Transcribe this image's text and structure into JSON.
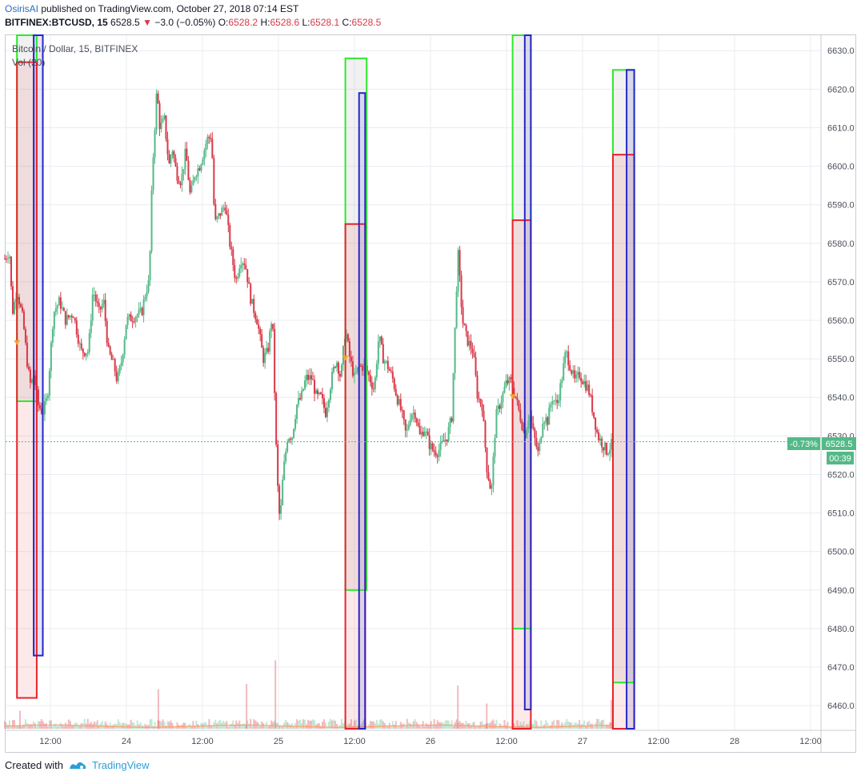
{
  "header": {
    "author": "OsirisAI",
    "published_text": "published on TradingView.com, October 27, 2018 07:14 EST",
    "symbol": "BITFINEX:BTCUSD, 15",
    "last": "6528.5",
    "change": "−3.0 (−0.05%)",
    "o_label": "O:",
    "o_value": "6528.2",
    "h_label": "H:",
    "h_value": "6528.6",
    "l_label": "L:",
    "l_value": "6528.1",
    "c_label": "C:",
    "c_value": "6528.5"
  },
  "legend": {
    "series_title": "Bitcoin / Dollar, 15, BITFINEX",
    "volume_title": "Vol (20)"
  },
  "price_tag": {
    "change": "-0.73%",
    "price": "6528.5",
    "countdown": "00:39"
  },
  "footer": {
    "created_with": "Created with",
    "brand": "TradingView"
  },
  "colors": {
    "up": "#53b987",
    "down": "#d93848",
    "green_box": "#2ee82e",
    "red_box": "#e8242b",
    "blue_box": "#2626c8",
    "grid": "#e9ecf2",
    "axis_text": "#4a4f5a"
  },
  "chart_data": {
    "type": "candlestick",
    "title": "Bitcoin / Dollar, 15, BITFINEX",
    "y_range": [
      6454,
      6634
    ],
    "y_ticks": [
      "6630.0",
      "6620.0",
      "6610.0",
      "6600.0",
      "6590.0",
      "6580.0",
      "6570.0",
      "6560.0",
      "6550.0",
      "6540.0",
      "6530.0",
      "6520.0",
      "6510.0",
      "6500.0",
      "6490.0",
      "6480.0",
      "6470.0",
      "6460.0"
    ],
    "x_range": [
      0,
      5.23
    ],
    "x_ticks": [
      {
        "t": 0.3,
        "label": "12:00"
      },
      {
        "t": 0.8,
        "label": "24"
      },
      {
        "t": 1.3,
        "label": "12:00"
      },
      {
        "t": 1.8,
        "label": "25"
      },
      {
        "t": 2.3,
        "label": "12:00"
      },
      {
        "t": 2.8,
        "label": "26"
      },
      {
        "t": 3.3,
        "label": "12:00"
      },
      {
        "t": 3.8,
        "label": "27"
      },
      {
        "t": 4.3,
        "label": "12:00"
      },
      {
        "t": 4.8,
        "label": "28"
      },
      {
        "t": 5.3,
        "label": "12:00"
      }
    ],
    "price_path": [
      [
        0.0,
        6576
      ],
      [
        0.03,
        6578
      ],
      [
        0.05,
        6562
      ],
      [
        0.08,
        6568
      ],
      [
        0.12,
        6560
      ],
      [
        0.15,
        6548
      ],
      [
        0.17,
        6543
      ],
      [
        0.19,
        6546
      ],
      [
        0.22,
        6538
      ],
      [
        0.25,
        6536
      ],
      [
        0.28,
        6540
      ],
      [
        0.32,
        6562
      ],
      [
        0.36,
        6565
      ],
      [
        0.4,
        6560
      ],
      [
        0.45,
        6562
      ],
      [
        0.5,
        6552
      ],
      [
        0.55,
        6552
      ],
      [
        0.58,
        6568
      ],
      [
        0.62,
        6562
      ],
      [
        0.65,
        6565
      ],
      [
        0.68,
        6552
      ],
      [
        0.72,
        6548
      ],
      [
        0.74,
        6544
      ],
      [
        0.77,
        6550
      ],
      [
        0.8,
        6560
      ],
      [
        0.85,
        6561
      ],
      [
        0.9,
        6562
      ],
      [
        0.93,
        6568
      ],
      [
        0.95,
        6570
      ],
      [
        0.97,
        6598
      ],
      [
        1.0,
        6620
      ],
      [
        1.02,
        6610
      ],
      [
        1.05,
        6612
      ],
      [
        1.08,
        6600
      ],
      [
        1.1,
        6605
      ],
      [
        1.13,
        6598
      ],
      [
        1.16,
        6596
      ],
      [
        1.19,
        6604
      ],
      [
        1.22,
        6592
      ],
      [
        1.25,
        6598
      ],
      [
        1.28,
        6600
      ],
      [
        1.31,
        6604
      ],
      [
        1.33,
        6607
      ],
      [
        1.36,
        6608
      ],
      [
        1.38,
        6585
      ],
      [
        1.42,
        6588
      ],
      [
        1.45,
        6590
      ],
      [
        1.48,
        6580
      ],
      [
        1.52,
        6570
      ],
      [
        1.55,
        6576
      ],
      [
        1.58,
        6575
      ],
      [
        1.62,
        6565
      ],
      [
        1.66,
        6560
      ],
      [
        1.7,
        6550
      ],
      [
        1.73,
        6552
      ],
      [
        1.76,
        6562
      ],
      [
        1.79,
        6520
      ],
      [
        1.81,
        6507
      ],
      [
        1.83,
        6520
      ],
      [
        1.86,
        6530
      ],
      [
        1.89,
        6530
      ],
      [
        1.92,
        6538
      ],
      [
        1.95,
        6540
      ],
      [
        1.98,
        6545
      ],
      [
        2.02,
        6545
      ],
      [
        2.05,
        6540
      ],
      [
        2.08,
        6540
      ],
      [
        2.11,
        6536
      ],
      [
        2.15,
        6545
      ],
      [
        2.18,
        6550
      ],
      [
        2.21,
        6545
      ],
      [
        2.24,
        6558
      ],
      [
        2.27,
        6550
      ],
      [
        2.3,
        6545
      ],
      [
        2.33,
        6548
      ],
      [
        2.37,
        6548
      ],
      [
        2.4,
        6545
      ],
      [
        2.43,
        6542
      ],
      [
        2.46,
        6556
      ],
      [
        2.49,
        6550
      ],
      [
        2.52,
        6548
      ],
      [
        2.55,
        6545
      ],
      [
        2.58,
        6540
      ],
      [
        2.61,
        6536
      ],
      [
        2.64,
        6530
      ],
      [
        2.67,
        6536
      ],
      [
        2.7,
        6536
      ],
      [
        2.73,
        6530
      ],
      [
        2.76,
        6532
      ],
      [
        2.79,
        6528
      ],
      [
        2.82,
        6526
      ],
      [
        2.85,
        6526
      ],
      [
        2.88,
        6528
      ],
      [
        2.91,
        6530
      ],
      [
        2.94,
        6535
      ],
      [
        2.98,
        6578
      ],
      [
        3.01,
        6560
      ],
      [
        3.04,
        6555
      ],
      [
        3.08,
        6552
      ],
      [
        3.11,
        6540
      ],
      [
        3.14,
        6538
      ],
      [
        3.17,
        6522
      ],
      [
        3.2,
        6515
      ],
      [
        3.23,
        6535
      ],
      [
        3.27,
        6540
      ],
      [
        3.3,
        6544
      ],
      [
        3.33,
        6544
      ],
      [
        3.36,
        6540
      ],
      [
        3.39,
        6535
      ],
      [
        3.42,
        6530
      ],
      [
        3.45,
        6536
      ],
      [
        3.48,
        6530
      ],
      [
        3.51,
        6525
      ],
      [
        3.54,
        6535
      ],
      [
        3.57,
        6534
      ],
      [
        3.6,
        6540
      ],
      [
        3.63,
        6538
      ],
      [
        3.66,
        6544
      ],
      [
        3.69,
        6552
      ],
      [
        3.72,
        6548
      ],
      [
        3.75,
        6544
      ],
      [
        3.78,
        6546
      ],
      [
        3.81,
        6544
      ],
      [
        3.84,
        6542
      ],
      [
        3.87,
        6536
      ],
      [
        3.9,
        6530
      ],
      [
        3.93,
        6528
      ],
      [
        3.96,
        6526
      ],
      [
        3.98,
        6527
      ],
      [
        4.0,
        6528.5
      ]
    ],
    "volume_range": [
      0,
      1
    ],
    "vol_spikes": [
      {
        "t": 1.01,
        "v": 0.55
      },
      {
        "t": 1.59,
        "v": 0.62
      },
      {
        "t": 1.78,
        "v": 0.95
      },
      {
        "t": 2.98,
        "v": 0.6
      },
      {
        "t": 3.17,
        "v": 0.35
      },
      {
        "t": 3.34,
        "v": 0.4
      },
      {
        "t": 3.99,
        "v": 0.4
      },
      {
        "t": 0.1,
        "v": 0.25
      }
    ],
    "markers": [
      {
        "t": 0.08,
        "p": 6554
      },
      {
        "t": 2.24,
        "p": 6550
      },
      {
        "t": 3.34,
        "p": 6540
      }
    ],
    "boxes": [
      {
        "t1": 0.08,
        "t2": 0.21,
        "p1": 6539,
        "p2": 6634,
        "color": "green"
      },
      {
        "t1": 0.08,
        "t2": 0.21,
        "p1": 6462,
        "p2": 6627,
        "color": "red"
      },
      {
        "t1": 0.19,
        "t2": 0.25,
        "p1": 6473,
        "p2": 6634,
        "color": "blue"
      },
      {
        "t1": 2.24,
        "t2": 2.38,
        "p1": 6490,
        "p2": 6628,
        "color": "green"
      },
      {
        "t1": 2.24,
        "t2": 2.37,
        "p1": 6454,
        "p2": 6585,
        "color": "red"
      },
      {
        "t1": 2.33,
        "t2": 2.37,
        "p1": 6454,
        "p2": 6619,
        "color": "blue"
      },
      {
        "t1": 3.34,
        "t2": 3.46,
        "p1": 6480,
        "p2": 6634,
        "color": "green"
      },
      {
        "t1": 3.34,
        "t2": 3.46,
        "p1": 6454,
        "p2": 6586,
        "color": "red"
      },
      {
        "t1": 3.42,
        "t2": 3.46,
        "p1": 6459,
        "p2": 6634,
        "color": "blue"
      },
      {
        "t1": 4.0,
        "t2": 4.14,
        "p1": 6466,
        "p2": 6625,
        "color": "green"
      },
      {
        "t1": 4.0,
        "t2": 4.14,
        "p1": 6454,
        "p2": 6603,
        "color": "red"
      },
      {
        "t1": 4.09,
        "t2": 4.14,
        "p1": 6454,
        "p2": 6625,
        "color": "blue"
      }
    ],
    "last_price": 6528.5,
    "grid": true
  }
}
